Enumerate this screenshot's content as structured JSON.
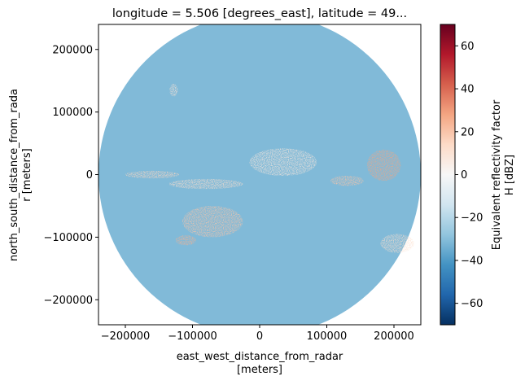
{
  "chart_data": {
    "type": "heatmap",
    "title": "longitude = 5.506 [degrees_east], latitude = 49...",
    "xlabel_line1": "east_west_distance_from_radar",
    "xlabel_line2": "[meters]",
    "ylabel_line1": "north_south_distance_from_rada",
    "ylabel_line2": "r [meters]",
    "xlim": [
      -240000,
      240000
    ],
    "ylim": [
      -240000,
      240000
    ],
    "radar_range_m": 240000,
    "xticks": [
      {
        "value": -200000,
        "label": "−200000"
      },
      {
        "value": -100000,
        "label": "−100000"
      },
      {
        "value": 0,
        "label": "0"
      },
      {
        "value": 100000,
        "label": "100000"
      },
      {
        "value": 200000,
        "label": "200000"
      }
    ],
    "yticks": [
      {
        "value": -200000,
        "label": "−200000"
      },
      {
        "value": -100000,
        "label": "−100000"
      },
      {
        "value": 0,
        "label": "0"
      },
      {
        "value": 100000,
        "label": "100000"
      },
      {
        "value": 200000,
        "label": "200000"
      }
    ],
    "background_value_dbz": -31,
    "echo_regions": [
      {
        "x": -128000,
        "y": 135000,
        "rx": 6000,
        "ry": 10000,
        "dbz": 10
      },
      {
        "x": -160000,
        "y": 0,
        "rx": 40000,
        "ry": 6000,
        "dbz": 15
      },
      {
        "x": -80000,
        "y": -15000,
        "rx": 55000,
        "ry": 8000,
        "dbz": 12
      },
      {
        "x": 35000,
        "y": 20000,
        "rx": 50000,
        "ry": 22000,
        "dbz": 8
      },
      {
        "x": -70000,
        "y": -75000,
        "rx": 45000,
        "ry": 25000,
        "dbz": 20
      },
      {
        "x": -110000,
        "y": -105000,
        "rx": 15000,
        "ry": 8000,
        "dbz": 25
      },
      {
        "x": 130000,
        "y": -10000,
        "rx": 25000,
        "ry": 8000,
        "dbz": 20
      },
      {
        "x": 185000,
        "y": 15000,
        "rx": 25000,
        "ry": 25000,
        "dbz": 28
      },
      {
        "x": 205000,
        "y": -110000,
        "rx": 25000,
        "ry": 15000,
        "dbz": 12
      }
    ],
    "colorbar": {
      "label_line1": "Equivalent reflectivity factor",
      "label_line2": "H [dBZ]",
      "vmin": -70,
      "vmax": 70,
      "colormap": "RdBu_r",
      "stops": [
        "#053061",
        "#2166ac",
        "#4393c3",
        "#92c5de",
        "#d1e5f0",
        "#f7f7f7",
        "#fddbc7",
        "#f4a582",
        "#d6604d",
        "#b2182b",
        "#67001f"
      ],
      "ticks": [
        {
          "value": 60,
          "label": "60"
        },
        {
          "value": 40,
          "label": "40"
        },
        {
          "value": 20,
          "label": "20"
        },
        {
          "value": 0,
          "label": "0"
        },
        {
          "value": -20,
          "label": "−20"
        },
        {
          "value": -40,
          "label": "−40"
        },
        {
          "value": -60,
          "label": "−60"
        }
      ]
    }
  }
}
